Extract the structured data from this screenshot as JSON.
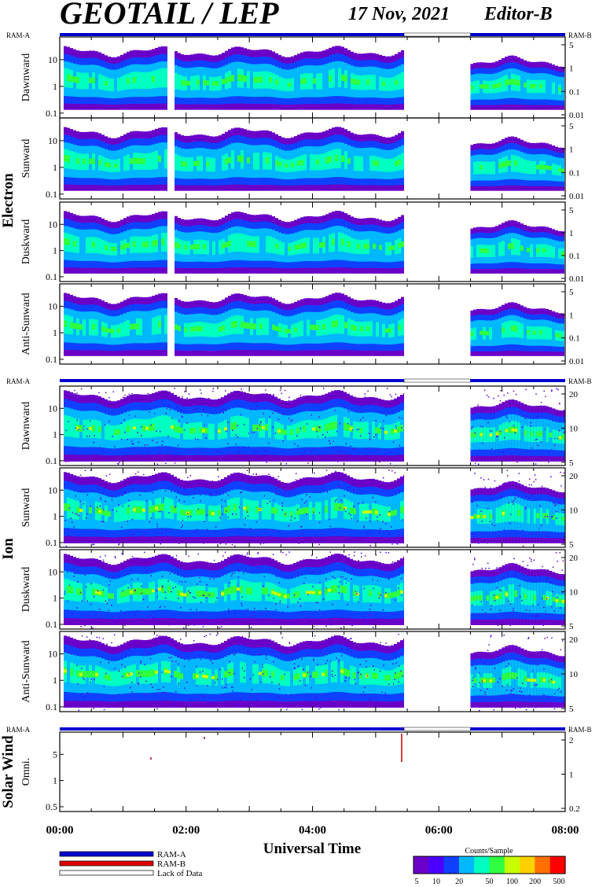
{
  "header": {
    "instrument": "GEOTAIL / LEP",
    "date": "17 Nov, 2021",
    "editor": "Editor-B"
  },
  "labels": {
    "ram_a": "RAM-A",
    "ram_b": "RAM-B",
    "x_axis_title": "Universal Time",
    "colorbar_title": "Counts/Sample"
  },
  "groups": [
    {
      "name": "Electron"
    },
    {
      "name": "Ion"
    },
    {
      "name": "Solar Wind"
    }
  ],
  "legend": {
    "items": [
      {
        "label": "RAM-A",
        "color": "#0000cc"
      },
      {
        "label": "RAM-B",
        "color": "#dd0000"
      },
      {
        "label": "Lack of Data",
        "color": "#ffffff"
      }
    ]
  },
  "colorbar": {
    "ticks": [
      "5",
      "10",
      "20",
      "50",
      "100",
      "200",
      "500"
    ],
    "colors": [
      "#6a00c8",
      "#4b00ff",
      "#1040ff",
      "#00b8ff",
      "#00ffc0",
      "#30ff40",
      "#c8ff00",
      "#ffd000",
      "#ff7000",
      "#ff0000"
    ]
  },
  "chart_data": {
    "type": "heatmap",
    "x_ticks": [
      "00:00",
      "02:00",
      "04:00",
      "06:00",
      "08:00"
    ],
    "xlim_hours": [
      0,
      8
    ],
    "data_gap_hours": [
      5.45,
      6.5
    ],
    "panels": [
      {
        "group": "Electron",
        "name": "Dawnward",
        "left_ticks": [
          "10",
          "1",
          "0.1"
        ],
        "right_ticks": [
          "5",
          "1",
          "0.1",
          "0.01"
        ]
      },
      {
        "group": "Electron",
        "name": "Sunward",
        "left_ticks": [
          "10",
          "1",
          "0.1"
        ],
        "right_ticks": [
          "5",
          "1",
          "0.1",
          "0.01"
        ]
      },
      {
        "group": "Electron",
        "name": "Duskward",
        "left_ticks": [
          "10",
          "1",
          "0.1"
        ],
        "right_ticks": [
          "5",
          "1",
          "0.1",
          "0.01"
        ]
      },
      {
        "group": "Electron",
        "name": "Anti-Sunward",
        "left_ticks": [
          "10",
          "1",
          "0.1"
        ],
        "right_ticks": [
          "5",
          "1",
          "0.1",
          "0.01"
        ]
      },
      {
        "group": "Ion",
        "name": "Dawnward",
        "left_ticks": [
          "10",
          "1",
          "0.1"
        ],
        "right_ticks": [
          "20",
          "10",
          "5"
        ]
      },
      {
        "group": "Ion",
        "name": "Sunward",
        "left_ticks": [
          "10",
          "1",
          "0.1"
        ],
        "right_ticks": [
          "20",
          "10",
          "5"
        ]
      },
      {
        "group": "Ion",
        "name": "Duskward",
        "left_ticks": [
          "10",
          "1",
          "0.1"
        ],
        "right_ticks": [
          "20",
          "10",
          "5"
        ]
      },
      {
        "group": "Ion",
        "name": "Anti-Sunward",
        "left_ticks": [
          "10",
          "1",
          "0.1"
        ],
        "right_ticks": [
          "20",
          "10",
          "5"
        ]
      },
      {
        "group": "Solar Wind",
        "name": "Omni.",
        "left_ticks": [
          "5",
          "1",
          "0.5"
        ],
        "right_ticks": [
          "2",
          "1",
          "0.2"
        ]
      }
    ]
  }
}
